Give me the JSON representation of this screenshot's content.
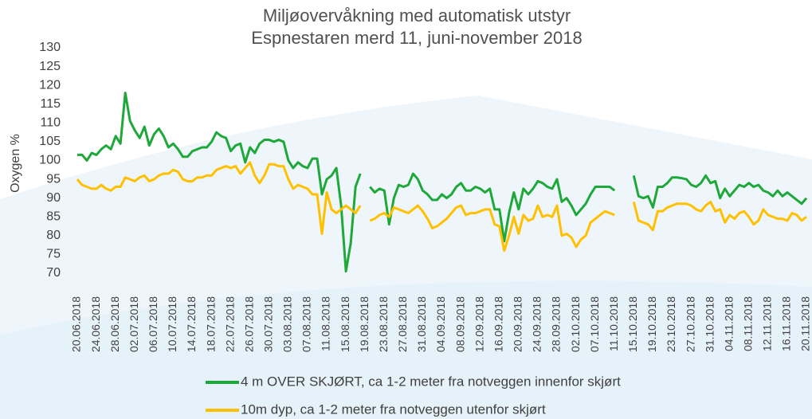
{
  "chart_data": {
    "type": "line",
    "title": "Miljøovervåkning med automatisk utstyr",
    "subtitle": "Espnestaren merd 11,  juni-november 2018",
    "y_label": "Oxygen %",
    "categories": [
      "20.06.2018",
      null,
      null,
      null,
      "24.06.2018",
      null,
      null,
      null,
      "28.06.2018",
      null,
      null,
      null,
      "02.07.2018",
      null,
      null,
      null,
      "06.07.2018",
      null,
      null,
      null,
      "10.07.2018",
      null,
      null,
      null,
      "14.07.2018",
      null,
      null,
      null,
      "18.07.2018",
      null,
      null,
      null,
      "22.07.2018",
      null,
      null,
      null,
      "26.07.2018",
      null,
      null,
      null,
      "30.07.2018",
      null,
      null,
      null,
      "03.08.2018",
      null,
      null,
      null,
      "07.08.2018",
      null,
      null,
      null,
      "11.08.2018",
      null,
      null,
      null,
      "15.08.2018",
      null,
      null,
      null,
      "19.08.2018",
      null,
      null,
      null,
      "23.08.2018",
      null,
      null,
      null,
      "27.08.2018",
      null,
      null,
      null,
      "31.08.2018",
      null,
      null,
      null,
      "04.09.2018",
      null,
      null,
      null,
      "08.09.2018",
      null,
      null,
      null,
      "12.09.2018",
      null,
      null,
      null,
      "16.09.2018",
      null,
      null,
      null,
      "20.09.2018",
      null,
      null,
      null,
      "24.09.2018",
      null,
      null,
      null,
      "28.09.2018",
      null,
      null,
      null,
      "02.10.2018",
      null,
      null,
      null,
      "07.10.2018",
      null,
      null,
      null,
      "11.10.2018",
      null,
      null,
      null,
      "15.10.2018",
      null,
      null,
      null,
      "19.10.2018",
      null,
      null,
      null,
      "23.10.2018",
      null,
      null,
      null,
      "27.10.2018",
      null,
      null,
      null,
      "31.10.2018",
      null,
      null,
      null,
      "04.11.2018",
      null,
      null,
      null,
      "08.11.2018",
      null,
      null,
      null,
      "12.11.2018",
      null,
      null,
      null,
      "16.11.2018",
      null,
      null,
      null,
      "20.11.2018"
    ],
    "series": [
      {
        "name": "4 m OVER SKJØRT, ca 1-2 meter fra notveggen innenfor skjørt",
        "color": "#1fa83a",
        "values": [
          101.5,
          101.5,
          100,
          102,
          101.5,
          103,
          104,
          103,
          106.5,
          104.5,
          118,
          110.5,
          108,
          106,
          109,
          104,
          107,
          108.5,
          106.5,
          103.5,
          104.5,
          103,
          101,
          101,
          102.5,
          103,
          103.5,
          103.5,
          105,
          107.5,
          106.5,
          106,
          102.5,
          104,
          104.5,
          99.5,
          103.5,
          102,
          104.5,
          105.5,
          105.5,
          105,
          105.5,
          105,
          100,
          98,
          99.5,
          98.5,
          98,
          100.5,
          100.5,
          91,
          95,
          96,
          98,
          88,
          70.5,
          78,
          93,
          96.5,
          null,
          93,
          91.5,
          92.5,
          92,
          83,
          90,
          93.5,
          93,
          93.5,
          96.5,
          95,
          92,
          91,
          89.5,
          89.5,
          91,
          90,
          91,
          93,
          94,
          92,
          92,
          93,
          92.5,
          91.5,
          92.5,
          87,
          87,
          78.5,
          86,
          91.5,
          87,
          92.5,
          91,
          92.5,
          94.5,
          94,
          93,
          92.5,
          95,
          89,
          90,
          88,
          85.5,
          87,
          88.5,
          91,
          93,
          93,
          93,
          93,
          92,
          null,
          null,
          null,
          96,
          90.5,
          90,
          90.5,
          87.5,
          93,
          93,
          94,
          95.5,
          95.5,
          95.3,
          95,
          93.5,
          93,
          94,
          96,
          94,
          94.5,
          90,
          92.5,
          90.5,
          92,
          93.5,
          93,
          94,
          93,
          93.5,
          92,
          91.5,
          90.5,
          92,
          90.5,
          91.5,
          90.5,
          89.5,
          88.5,
          90
        ]
      },
      {
        "name": "10m dyp, ca 1-2 meter fra notveggen utenfor skjørt",
        "color": "#ffc000",
        "values": [
          95,
          93.5,
          93,
          92.5,
          92.5,
          93.5,
          92.5,
          92,
          93,
          93,
          95.5,
          95,
          94.5,
          95.5,
          96,
          94.5,
          95,
          96,
          96.5,
          96.5,
          97.5,
          97,
          95,
          94.5,
          94.5,
          95.5,
          95.5,
          96,
          96,
          97.5,
          98,
          98.5,
          98,
          98.5,
          96.5,
          98,
          99.5,
          96,
          94,
          96,
          99,
          99,
          98.5,
          98.5,
          95,
          92.5,
          93.5,
          93,
          92.5,
          91,
          91,
          80.5,
          91.5,
          87,
          86,
          87,
          88,
          87,
          86,
          88,
          null,
          84,
          84.5,
          85.5,
          86,
          85,
          87.5,
          87,
          86.5,
          86,
          87,
          88,
          86.5,
          84.5,
          82,
          82.5,
          83.5,
          84.5,
          86,
          87.5,
          88,
          85.5,
          86,
          86,
          86.5,
          87,
          87,
          83,
          82.5,
          76,
          80,
          85,
          80.5,
          85.5,
          84,
          84.5,
          88,
          85,
          85.5,
          85,
          88,
          80,
          80.5,
          79.5,
          77,
          79,
          80,
          83.5,
          84.5,
          85.5,
          86.5,
          86,
          85.5,
          null,
          null,
          null,
          89,
          84,
          83.5,
          83,
          81.5,
          86.5,
          86.5,
          87.5,
          88,
          88.5,
          88.5,
          88.5,
          88,
          87,
          86.5,
          88,
          89,
          86.5,
          87,
          83.5,
          85.5,
          84.5,
          86,
          86.5,
          85,
          83,
          84,
          87,
          85.5,
          85,
          84.5,
          84.5,
          84,
          86,
          85.5,
          84,
          85
        ]
      }
    ],
    "ylim": [
      70,
      130
    ],
    "yticks": [
      70,
      75,
      80,
      85,
      90,
      95,
      100,
      105,
      110,
      115,
      120,
      125,
      130
    ],
    "grid": false
  }
}
